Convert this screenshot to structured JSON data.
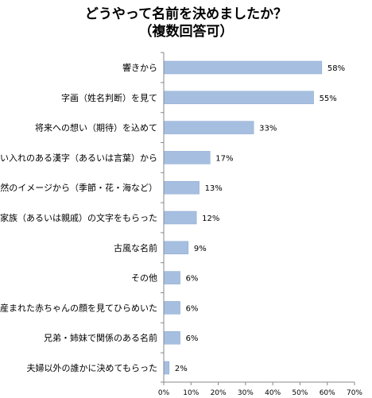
{
  "title_line1": "どうやって名前を決めましたか？",
  "title_line2": "（複数回答可）",
  "chart_data": {
    "type": "bar",
    "orientation": "horizontal",
    "categories": [
      "響きから",
      "字画（姓名判断）を見て",
      "将来への想い（期待）を込めて",
      "思い入れのある漢字（あるいは言葉）から",
      "自然のイメージから（季節・花・海など）",
      "家族（あるいは親戚）の文字をもらった",
      "古風な名前",
      "その他",
      "産まれた赤ちゃんの顔を見てひらめいた",
      "兄弟・姉妹で関係のある名前",
      "夫婦以外の誰かに決めてもらった"
    ],
    "values": [
      58,
      55,
      33,
      17,
      13,
      12,
      9,
      6,
      6,
      6,
      2
    ],
    "value_labels": [
      "58%",
      "55%",
      "33%",
      "17%",
      "13%",
      "12%",
      "9%",
      "6%",
      "6%",
      "6%",
      "2%"
    ],
    "xlim": [
      0,
      70
    ],
    "x_ticks": [
      "0%",
      "10%",
      "20%",
      "30%",
      "40%",
      "50%",
      "60%",
      "70%"
    ],
    "bar_color": "#a6bfe0",
    "bar_edge_color": "#8aa6cf",
    "grid": false,
    "legend": false
  }
}
